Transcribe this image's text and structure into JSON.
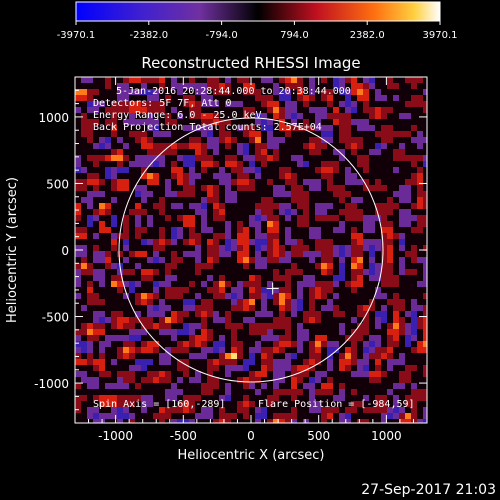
{
  "colorbar": {
    "tick_labels": [
      "-3970.1",
      "-2382.0",
      "-794.0",
      "794.0",
      "2382.0",
      "3970.1"
    ],
    "range": [
      -3970.1,
      3970.1
    ],
    "colors": [
      "#0000ff",
      "#7a30b0",
      "#000000",
      "#c01020",
      "#ff7010",
      "#ffffff"
    ]
  },
  "plot": {
    "title": "Reconstructed RHESSI Image",
    "xlabel": "Heliocentric X (arcsec)",
    "ylabel": "Heliocentric Y (arcsec)",
    "annotations": [
      "5-Jan-2016 20:28:44.000 to 20:38:44.000",
      "Detectors: 5F 7F, Att 0",
      "Energy Range: 6.0 - 25.0 keV",
      "Back Projection   Total counts: 2.57E+04"
    ],
    "spin_axis": "Spin Axis = [160,-289]",
    "flare_position": "Flare Position = [-984,59]"
  },
  "footer": {
    "timestamp": "27-Sep-2017 21:03"
  },
  "chart_data": {
    "type": "heatmap",
    "title": "Reconstructed RHESSI Image",
    "xlabel": "Heliocentric X (arcsec)",
    "ylabel": "Heliocentric Y (arcsec)",
    "xlim": [
      -1300,
      1300
    ],
    "ylim": [
      -1300,
      1300
    ],
    "x_ticks": [
      -1000,
      -500,
      0,
      500,
      1000
    ],
    "y_ticks": [
      -1000,
      -500,
      0,
      500,
      1000
    ],
    "value_range": [
      -3970.1,
      3970.1
    ],
    "solar_limb_radius": 975,
    "marker": [
      160,
      -289
    ],
    "grid": false
  }
}
